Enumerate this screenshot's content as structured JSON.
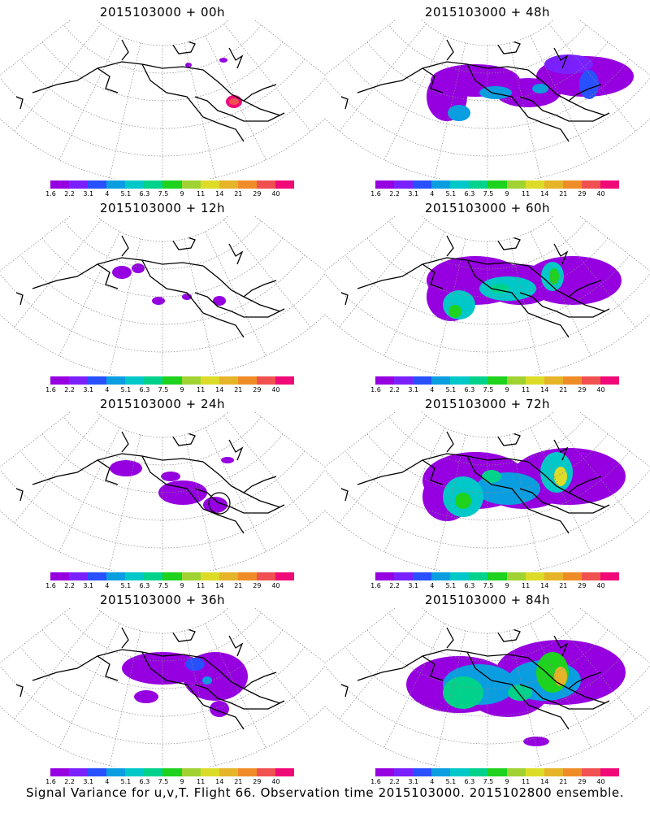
{
  "panels": [
    {
      "title": "2015103000 + 00h"
    },
    {
      "title": "2015103000 + 48h"
    },
    {
      "title": "2015103000 + 12h"
    },
    {
      "title": "2015103000 + 60h"
    },
    {
      "title": "2015103000 + 24h"
    },
    {
      "title": "2015103000 + 72h"
    },
    {
      "title": "2015103000 + 36h"
    },
    {
      "title": "2015103000 + 84h"
    }
  ],
  "colorbar": {
    "labels": [
      "1.6",
      "2.2",
      "3.1",
      "4",
      "5.1",
      "6.3",
      "7.5",
      "9",
      "11",
      "14",
      "21",
      "29",
      "40"
    ],
    "colors": [
      "#9600e0",
      "#7a20ff",
      "#2850ff",
      "#0a9ee0",
      "#00c8c8",
      "#00d28c",
      "#1ed21e",
      "#a0d232",
      "#dcdc28",
      "#e6b428",
      "#f08c28",
      "#f05050",
      "#f00a78"
    ]
  },
  "footer": "Signal Variance for u,v,T. Flight 66. Observation time 2015103000. 2015102800 ensemble."
}
